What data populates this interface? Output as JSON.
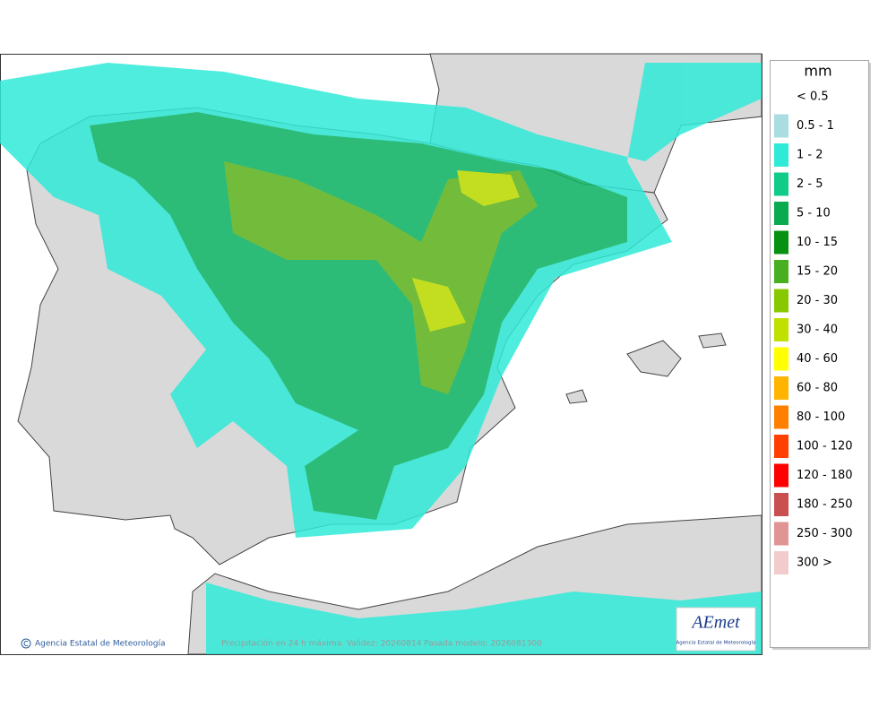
{
  "legend": {
    "title": "mm",
    "items": [
      {
        "label": "< 0.5",
        "color": "#ffffff"
      },
      {
        "label": "0.5 - 1",
        "color": "#aadde2"
      },
      {
        "label": "1 - 2",
        "color": "#30ead8"
      },
      {
        "label": "2 - 5",
        "color": "#10cc88"
      },
      {
        "label": "5 - 10",
        "color": "#0aaa50"
      },
      {
        "label": "10 - 15",
        "color": "#089010"
      },
      {
        "label": "15 - 20",
        "color": "#48b020"
      },
      {
        "label": "20 - 30",
        "color": "#88c800"
      },
      {
        "label": "30 - 40",
        "color": "#c0e000"
      },
      {
        "label": "40 - 60",
        "color": "#ffff00"
      },
      {
        "label": "60 - 80",
        "color": "#ffb400"
      },
      {
        "label": "80 - 100",
        "color": "#ff8000"
      },
      {
        "label": "100 - 120",
        "color": "#ff4000"
      },
      {
        "label": "120 - 180",
        "color": "#ff0000"
      },
      {
        "label": "180 - 250",
        "color": "#c85050"
      },
      {
        "label": "250 - 300",
        "color": "#e09494"
      },
      {
        "label": "300 >",
        "color": "#f2cccc"
      }
    ]
  },
  "footer": {
    "credit": "Agencia Estatal de Meteorología",
    "caption": "Precipitación en 24 h máxima. Validez: 20260814 Pasada modelo: 2026081300"
  },
  "logo": {
    "name": "AEmet",
    "subtitle": "Agencia Estatal de Meteorología"
  }
}
